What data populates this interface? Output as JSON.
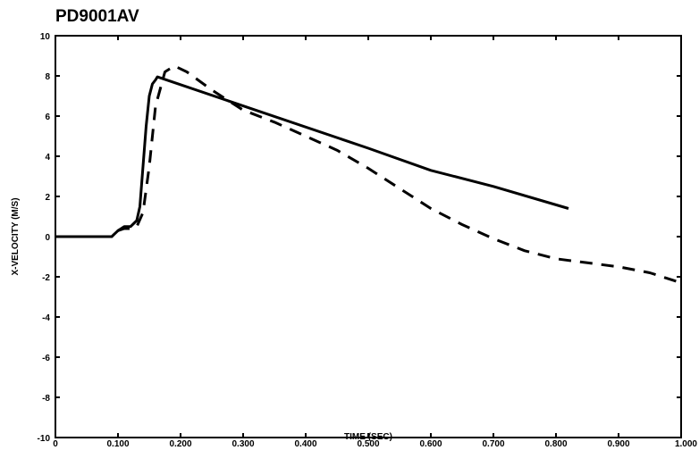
{
  "chart_data": {
    "type": "line",
    "title": "PD9001AV",
    "xlabel": "TIME (SEC)",
    "ylabel": "X-VELOCITY (M/S)",
    "xlim": [
      0,
      1.0
    ],
    "ylim": [
      -10,
      10
    ],
    "x_tick_labels": [
      "0",
      "0.100",
      "0.200",
      "0.300",
      "0.400",
      "0.500",
      "0.600",
      "0.700",
      "0.800",
      "0.900",
      "1.000"
    ],
    "y_tick_labels": [
      "10",
      "8",
      "6",
      "4",
      "2",
      "0",
      "-2",
      "-4",
      "-6",
      "-8",
      "-10"
    ],
    "grid": false,
    "series": [
      {
        "style": "solid",
        "color": "#000000",
        "x": [
          0,
          0.09,
          0.1,
          0.11,
          0.12,
          0.13,
          0.135,
          0.14,
          0.145,
          0.15,
          0.155,
          0.16,
          0.163,
          0.5,
          0.6,
          0.7,
          0.82
        ],
        "y": [
          0,
          0,
          0.3,
          0.5,
          0.5,
          0.8,
          1.5,
          3.5,
          5.5,
          7.0,
          7.6,
          7.8,
          7.95,
          4.4,
          3.3,
          2.5,
          1.4
        ]
      },
      {
        "style": "dashed",
        "color": "#000000",
        "x": [
          0,
          0.09,
          0.1,
          0.11,
          0.12,
          0.13,
          0.14,
          0.15,
          0.16,
          0.175,
          0.19,
          0.21,
          0.25,
          0.3,
          0.35,
          0.4,
          0.45,
          0.5,
          0.55,
          0.6,
          0.65,
          0.7,
          0.75,
          0.8,
          0.85,
          0.9,
          0.95,
          1.0
        ],
        "y": [
          0,
          0,
          0.3,
          0.4,
          0.4,
          0.5,
          1.2,
          3.5,
          6.5,
          8.2,
          8.5,
          8.2,
          7.3,
          6.3,
          5.7,
          5.0,
          4.3,
          3.4,
          2.4,
          1.4,
          0.6,
          -0.1,
          -0.7,
          -1.1,
          -1.3,
          -1.5,
          -1.8,
          -2.3
        ]
      }
    ]
  }
}
